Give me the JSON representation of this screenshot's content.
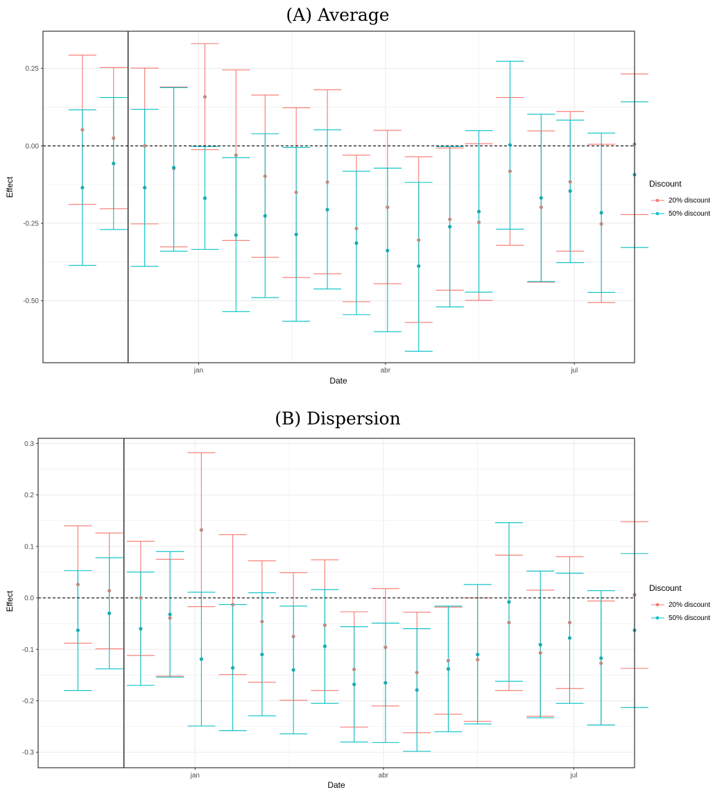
{
  "colors": {
    "series_20": "#F8766D",
    "series_50": "#00BFC4",
    "point_20": "#BE8C84",
    "point_50": "#17ABB4",
    "panel_border": "#333333",
    "grid": "#EBEBEB"
  },
  "chart_data": [
    {
      "type": "scatter",
      "subtitle_prefix": "(A)",
      "title": "Average",
      "xlabel": "Date",
      "ylabel": "Effect",
      "yticks": [
        0.25,
        0.0,
        -0.25,
        -0.5
      ],
      "ytick_labels": [
        "0.25",
        "0.00",
        "-0.25",
        "-0.50"
      ],
      "ylim": [
        -0.7,
        0.37
      ],
      "xticks": [
        "2023-01-01",
        "2023-04-01",
        "2023-07-01"
      ],
      "xtick_labels": [
        "jan",
        "abr",
        "jul"
      ],
      "xlim": [
        "2022-10-18",
        "2023-07-30"
      ],
      "vline": "2022-11-28",
      "hline": 0,
      "legend": {
        "title": "Discount",
        "position": "right",
        "entries": [
          "20% discount",
          "50% discount"
        ]
      },
      "series": [
        {
          "name": "20% discount",
          "x": [
            "2022-11-06",
            "2022-11-21",
            "2022-12-06",
            "2022-12-20",
            "2023-01-04",
            "2023-01-19",
            "2023-02-02",
            "2023-02-17",
            "2023-03-04",
            "2023-03-18",
            "2023-04-02",
            "2023-04-17",
            "2023-05-02",
            "2023-05-16",
            "2023-05-31",
            "2023-06-15",
            "2023-06-29",
            "2023-07-14"
          ],
          "y": [
            0.052,
            0.025,
            0.0,
            -0.073,
            0.158,
            -0.03,
            -0.098,
            -0.15,
            -0.117,
            -0.267,
            -0.198,
            -0.304,
            -0.237,
            -0.247,
            -0.082,
            -0.198,
            -0.116,
            -0.252
          ],
          "lower": [
            -0.189,
            -0.203,
            -0.252,
            -0.326,
            -0.012,
            -0.305,
            -0.36,
            -0.425,
            -0.413,
            -0.503,
            -0.445,
            -0.57,
            -0.466,
            -0.499,
            -0.321,
            -0.44,
            -0.34,
            -0.506
          ],
          "upper": [
            0.293,
            0.253,
            0.251,
            0.19,
            0.33,
            0.245,
            0.164,
            0.123,
            0.181,
            -0.03,
            0.05,
            -0.035,
            -0.007,
            0.007,
            0.156,
            0.048,
            0.111,
            0.005
          ]
        },
        {
          "name": "50% discount",
          "x": [
            "2022-11-06",
            "2022-11-21",
            "2022-12-06",
            "2022-12-20",
            "2023-01-04",
            "2023-01-19",
            "2023-02-02",
            "2023-02-17",
            "2023-03-04",
            "2023-03-18",
            "2023-04-02",
            "2023-04-17",
            "2023-05-02",
            "2023-05-16",
            "2023-05-31",
            "2023-06-15",
            "2023-06-29",
            "2023-07-14"
          ],
          "y": [
            -0.135,
            -0.057,
            -0.135,
            -0.07,
            -0.169,
            -0.288,
            -0.226,
            -0.286,
            -0.206,
            -0.314,
            -0.338,
            -0.388,
            -0.261,
            -0.212,
            0.003,
            -0.168,
            -0.146,
            -0.216
          ],
          "lower": [
            -0.386,
            -0.27,
            -0.389,
            -0.34,
            -0.334,
            -0.535,
            -0.49,
            -0.566,
            -0.462,
            -0.545,
            -0.6,
            -0.663,
            -0.52,
            -0.472,
            -0.269,
            -0.438,
            -0.377,
            -0.473
          ],
          "upper": [
            0.116,
            0.156,
            0.118,
            0.188,
            -0.002,
            -0.038,
            0.039,
            -0.005,
            0.052,
            -0.082,
            -0.072,
            -0.118,
            -0.002,
            0.049,
            0.273,
            0.102,
            0.083,
            0.041
          ]
        }
      ],
      "extra_points": [
        {
          "series": "20% discount",
          "x": "2023-07-30",
          "y": 0.005,
          "lower": -0.222,
          "upper": 0.232
        },
        {
          "series": "50% discount",
          "x": "2023-07-30",
          "y": -0.093,
          "lower": -0.328,
          "upper": 0.142
        }
      ]
    },
    {
      "type": "scatter",
      "subtitle_prefix": "(B)",
      "title": "Dispersion",
      "xlabel": "Date",
      "ylabel": "Effect",
      "yticks": [
        0.3,
        0.2,
        0.1,
        0.0,
        -0.1,
        -0.2,
        -0.3
      ],
      "ytick_labels": [
        "0.3",
        "0.2",
        "0.1",
        "0.0",
        "-0.1",
        "-0.2",
        "-0.3"
      ],
      "ylim": [
        -0.33,
        0.31
      ],
      "xticks": [
        "2023-01-01",
        "2023-04-01",
        "2023-07-01"
      ],
      "xtick_labels": [
        "jan",
        "abr",
        "jul"
      ],
      "xlim": [
        "2022-10-18",
        "2023-07-30"
      ],
      "vline": "2022-11-28",
      "hline": 0,
      "legend": {
        "title": "Discount",
        "position": "right",
        "entries": [
          "20% discount",
          "50% discount"
        ]
      },
      "series": [
        {
          "name": "20% discount",
          "x": [
            "2022-11-06",
            "2022-11-21",
            "2022-12-06",
            "2022-12-20",
            "2023-01-04",
            "2023-01-19",
            "2023-02-02",
            "2023-02-17",
            "2023-03-04",
            "2023-03-18",
            "2023-04-02",
            "2023-04-17",
            "2023-05-02",
            "2023-05-16",
            "2023-05-31",
            "2023-06-15",
            "2023-06-29",
            "2023-07-14"
          ],
          "y": [
            0.026,
            0.014,
            0.0,
            -0.039,
            0.132,
            -0.013,
            -0.046,
            -0.075,
            -0.053,
            -0.139,
            -0.096,
            -0.145,
            -0.122,
            -0.12,
            -0.048,
            -0.107,
            -0.048,
            -0.127
          ],
          "lower": [
            -0.088,
            -0.099,
            -0.112,
            -0.152,
            -0.017,
            -0.149,
            -0.164,
            -0.199,
            -0.18,
            -0.251,
            -0.21,
            -0.262,
            -0.226,
            -0.24,
            -0.18,
            -0.23,
            -0.176,
            -0.247
          ],
          "upper": [
            0.14,
            0.126,
            0.11,
            0.075,
            0.282,
            0.123,
            0.072,
            0.049,
            0.074,
            -0.027,
            0.018,
            -0.028,
            -0.018,
            0.0,
            0.083,
            0.015,
            0.08,
            -0.006
          ]
        },
        {
          "name": "50% discount",
          "x": [
            "2022-11-06",
            "2022-11-21",
            "2022-12-06",
            "2022-12-20",
            "2023-01-04",
            "2023-01-19",
            "2023-02-02",
            "2023-02-17",
            "2023-03-04",
            "2023-03-18",
            "2023-04-02",
            "2023-04-17",
            "2023-05-02",
            "2023-05-16",
            "2023-05-31",
            "2023-06-15",
            "2023-06-29",
            "2023-07-14"
          ],
          "y": [
            -0.063,
            -0.03,
            -0.06,
            -0.032,
            -0.119,
            -0.136,
            -0.11,
            -0.14,
            -0.094,
            -0.168,
            -0.165,
            -0.179,
            -0.138,
            -0.11,
            -0.008,
            -0.091,
            -0.078,
            -0.117
          ],
          "lower": [
            -0.18,
            -0.138,
            -0.17,
            -0.154,
            -0.249,
            -0.258,
            -0.229,
            -0.264,
            -0.205,
            -0.28,
            -0.281,
            -0.298,
            -0.26,
            -0.245,
            -0.162,
            -0.233,
            -0.205,
            -0.247
          ],
          "upper": [
            0.053,
            0.078,
            0.05,
            0.09,
            0.011,
            -0.013,
            0.01,
            -0.016,
            0.016,
            -0.056,
            -0.049,
            -0.06,
            -0.016,
            0.026,
            0.146,
            0.052,
            0.048,
            0.014
          ]
        }
      ],
      "extra_points": [
        {
          "series": "20% discount",
          "x": "2023-07-30",
          "y": 0.006,
          "lower": -0.137,
          "upper": 0.148
        },
        {
          "series": "50% discount",
          "x": "2023-07-30",
          "y": -0.063,
          "lower": -0.213,
          "upper": 0.086
        }
      ]
    }
  ]
}
